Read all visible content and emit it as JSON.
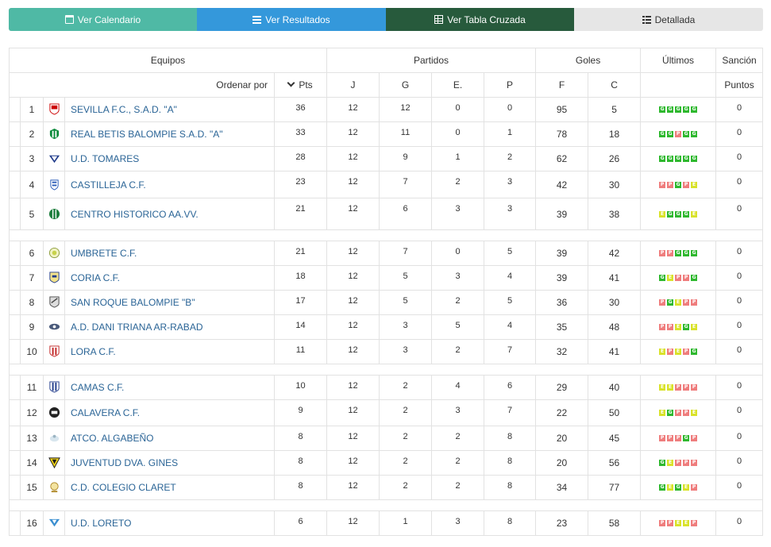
{
  "tabs": {
    "calendar": "Ver Calendario",
    "results": "Ver Resultados",
    "cross_table": "Ver Tabla Cruzada",
    "detailed": "Detallada"
  },
  "headers": {
    "equipos": "Equipos",
    "partidos": "Partidos",
    "goles": "Goles",
    "ultimos": "Últimos",
    "sancion": "Sanción",
    "ordenar_por": "Ordenar por",
    "pts": "Pts",
    "j": "J",
    "g": "G",
    "e": "E.",
    "p": "P",
    "f": "F",
    "c": "C",
    "puntos": "Puntos"
  },
  "colors": {
    "win": "#2eb82e",
    "loss": "#ef7d7d",
    "draw": "#d9e22a",
    "calendar_tab": "#4fb9a5",
    "results_tab": "#3498db",
    "cross_tab": "#275a3c"
  },
  "form_legend": {
    "G": "win",
    "E": "draw",
    "P": "loss"
  },
  "teams": [
    {
      "pos": "1",
      "name": "SEVILLA F.C., S.A.D. \"A\"",
      "crest": "sevilla-crest",
      "pts": "36",
      "j": "12",
      "g": "12",
      "e": "0",
      "p": "0",
      "f": "95",
      "c": "5",
      "form": [
        "G",
        "G",
        "G",
        "G",
        "G"
      ],
      "sancion": "0"
    },
    {
      "pos": "2",
      "name": "REAL BETIS BALOMPIE S.A.D. \"A\"",
      "crest": "betis-crest",
      "pts": "33",
      "j": "12",
      "g": "11",
      "e": "0",
      "p": "1",
      "f": "78",
      "c": "18",
      "form": [
        "G",
        "G",
        "P",
        "G",
        "G"
      ],
      "sancion": "0"
    },
    {
      "pos": "3",
      "name": "U.D. TOMARES",
      "crest": "tomares-crest",
      "pts": "28",
      "j": "12",
      "g": "9",
      "e": "1",
      "p": "2",
      "f": "62",
      "c": "26",
      "form": [
        "G",
        "G",
        "G",
        "G",
        "G"
      ],
      "sancion": "0"
    },
    {
      "pos": "4",
      "name": "CASTILLEJA C.F.",
      "crest": "castilleja-crest",
      "pts": "23",
      "j": "12",
      "g": "7",
      "e": "2",
      "p": "3",
      "f": "42",
      "c": "30",
      "form": [
        "P",
        "P",
        "G",
        "P",
        "E"
      ],
      "sancion": "0"
    },
    {
      "pos": "5",
      "name": "CENTRO HISTORICO AA.VV.",
      "crest": "centro-historico-crest",
      "pts": "21",
      "j": "12",
      "g": "6",
      "e": "3",
      "p": "3",
      "f": "39",
      "c": "38",
      "form": [
        "E",
        "G",
        "G",
        "G",
        "E"
      ],
      "sancion": "0"
    },
    {
      "pos": "6",
      "name": "UMBRETE C.F.",
      "crest": "umbrete-crest",
      "pts": "21",
      "j": "12",
      "g": "7",
      "e": "0",
      "p": "5",
      "f": "39",
      "c": "42",
      "form": [
        "P",
        "P",
        "G",
        "G",
        "G"
      ],
      "sancion": "0"
    },
    {
      "pos": "7",
      "name": "CORIA C.F.",
      "crest": "coria-crest",
      "pts": "18",
      "j": "12",
      "g": "5",
      "e": "3",
      "p": "4",
      "f": "39",
      "c": "41",
      "form": [
        "G",
        "E",
        "P",
        "P",
        "G"
      ],
      "sancion": "0"
    },
    {
      "pos": "8",
      "name": "SAN ROQUE BALOMPIE \"B\"",
      "crest": "san-roque-crest",
      "pts": "17",
      "j": "12",
      "g": "5",
      "e": "2",
      "p": "5",
      "f": "36",
      "c": "30",
      "form": [
        "P",
        "G",
        "E",
        "P",
        "P"
      ],
      "sancion": "0"
    },
    {
      "pos": "9",
      "name": "A.D. DANI TRIANA AR-RABAD",
      "crest": "dani-triana-crest",
      "pts": "14",
      "j": "12",
      "g": "3",
      "e": "5",
      "p": "4",
      "f": "35",
      "c": "48",
      "form": [
        "P",
        "P",
        "E",
        "G",
        "E"
      ],
      "sancion": "0"
    },
    {
      "pos": "10",
      "name": "LORA C.F.",
      "crest": "lora-crest",
      "pts": "11",
      "j": "12",
      "g": "3",
      "e": "2",
      "p": "7",
      "f": "32",
      "c": "41",
      "form": [
        "E",
        "P",
        "E",
        "P",
        "G"
      ],
      "sancion": "0"
    },
    {
      "pos": "11",
      "name": "CAMAS C.F.",
      "crest": "camas-crest",
      "pts": "10",
      "j": "12",
      "g": "2",
      "e": "4",
      "p": "6",
      "f": "29",
      "c": "40",
      "form": [
        "E",
        "E",
        "P",
        "P",
        "P"
      ],
      "sancion": "0"
    },
    {
      "pos": "12",
      "name": "CALAVERA C.F.",
      "crest": "calavera-crest",
      "pts": "9",
      "j": "12",
      "g": "2",
      "e": "3",
      "p": "7",
      "f": "22",
      "c": "50",
      "form": [
        "E",
        "G",
        "P",
        "P",
        "E"
      ],
      "sancion": "0"
    },
    {
      "pos": "13",
      "name": "ATCO. ALGABEÑO",
      "crest": "algabeno-crest",
      "pts": "8",
      "j": "12",
      "g": "2",
      "e": "2",
      "p": "8",
      "f": "20",
      "c": "45",
      "form": [
        "P",
        "P",
        "P",
        "G",
        "P"
      ],
      "sancion": "0"
    },
    {
      "pos": "14",
      "name": "JUVENTUD DVA. GINES",
      "crest": "gines-crest",
      "pts": "8",
      "j": "12",
      "g": "2",
      "e": "2",
      "p": "8",
      "f": "20",
      "c": "56",
      "form": [
        "G",
        "E",
        "P",
        "P",
        "P"
      ],
      "sancion": "0"
    },
    {
      "pos": "15",
      "name": "C.D. COLEGIO CLARET",
      "crest": "claret-crest",
      "pts": "8",
      "j": "12",
      "g": "2",
      "e": "2",
      "p": "8",
      "f": "34",
      "c": "77",
      "form": [
        "G",
        "E",
        "G",
        "E",
        "P"
      ],
      "sancion": "0"
    },
    {
      "pos": "16",
      "name": "U.D. LORETO",
      "crest": "loreto-crest",
      "pts": "6",
      "j": "12",
      "g": "1",
      "e": "3",
      "p": "8",
      "f": "23",
      "c": "58",
      "form": [
        "P",
        "P",
        "E",
        "E",
        "P"
      ],
      "sancion": "0"
    }
  ]
}
